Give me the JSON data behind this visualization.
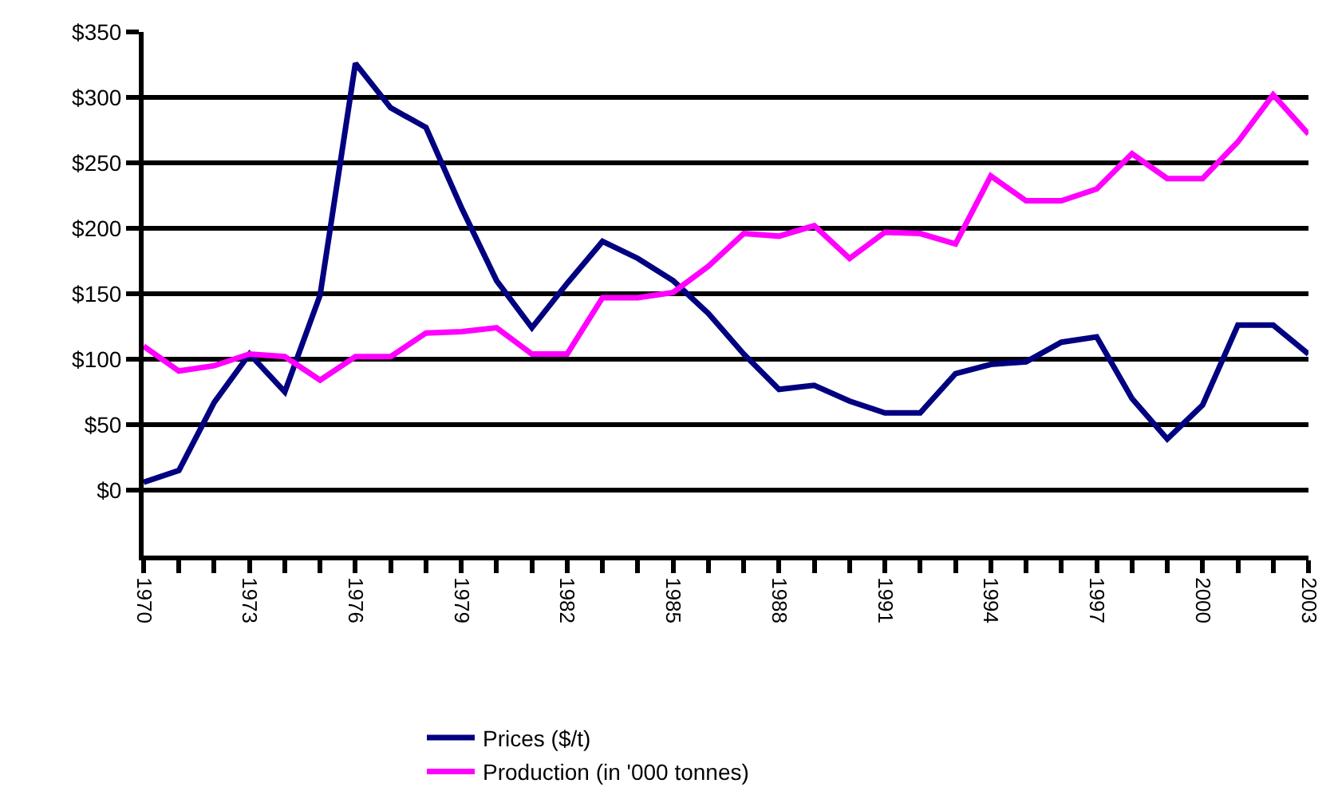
{
  "chart_data": {
    "type": "line",
    "x": [
      1970,
      1971,
      1972,
      1973,
      1974,
      1975,
      1976,
      1977,
      1978,
      1979,
      1980,
      1981,
      1982,
      1983,
      1984,
      1985,
      1986,
      1987,
      1988,
      1989,
      1990,
      1991,
      1992,
      1993,
      1994,
      1995,
      1996,
      1997,
      1998,
      1999,
      2000,
      2001,
      2002,
      2003
    ],
    "series": [
      {
        "name": "Prices ($/t)",
        "color": "#000080",
        "values": [
          6,
          15,
          67,
          104,
          75,
          149,
          326,
          292,
          277,
          216,
          160,
          124,
          158,
          190,
          177,
          160,
          135,
          104,
          77,
          80,
          68,
          59,
          59,
          89,
          96,
          98,
          113,
          117,
          70,
          39,
          65,
          126,
          126,
          104
        ]
      },
      {
        "name": "Production (in '000 tonnes)",
        "color": "#ff00ff",
        "values": [
          110,
          91,
          95,
          104,
          102,
          84,
          102,
          102,
          120,
          121,
          124,
          104,
          104,
          147,
          147,
          151,
          171,
          196,
          194,
          202,
          177,
          197,
          196,
          188,
          240,
          221,
          221,
          230,
          257,
          238,
          238,
          266,
          302,
          272
        ]
      }
    ],
    "xlim": [
      1970,
      2003
    ],
    "xticks": [
      1970,
      {
        "value": 1971,
        "label": null
      },
      {
        "value": 1972,
        "label": null
      },
      1973,
      {
        "value": 1974,
        "label": null
      },
      {
        "value": 1975,
        "label": null
      },
      1976,
      {
        "value": 1977,
        "label": null
      },
      {
        "value": 1978,
        "label": null
      },
      1979,
      {
        "value": 1980,
        "label": null
      },
      {
        "value": 1981,
        "label": null
      },
      1982,
      {
        "value": 1983,
        "label": null
      },
      {
        "value": 1984,
        "label": null
      },
      1985,
      {
        "value": 1986,
        "label": null
      },
      {
        "value": 1987,
        "label": null
      },
      1988,
      {
        "value": 1989,
        "label": null
      },
      {
        "value": 1990,
        "label": null
      },
      1991,
      {
        "value": 1992,
        "label": null
      },
      {
        "value": 1993,
        "label": null
      },
      1994,
      {
        "value": 1995,
        "label": null
      },
      {
        "value": 1996,
        "label": null
      },
      1997,
      {
        "value": 1998,
        "label": null
      },
      {
        "value": 1999,
        "label": null
      },
      2000,
      {
        "value": 2001,
        "label": null
      },
      {
        "value": 2002,
        "label": null
      },
      2003
    ],
    "ylim": [
      -50,
      350
    ],
    "yticks": [
      {
        "value": 0,
        "label": "$0"
      },
      {
        "value": 50,
        "label": "$50"
      },
      {
        "value": 100,
        "label": "$100"
      },
      {
        "value": 150,
        "label": "$150"
      },
      {
        "value": 200,
        "label": "$200"
      },
      {
        "value": 250,
        "label": "$250"
      },
      {
        "value": 300,
        "label": "$300"
      },
      {
        "value": 350,
        "label": "$350"
      }
    ],
    "grid": "y",
    "legend": "bottom",
    "marker": "none",
    "line_style": "solid"
  }
}
